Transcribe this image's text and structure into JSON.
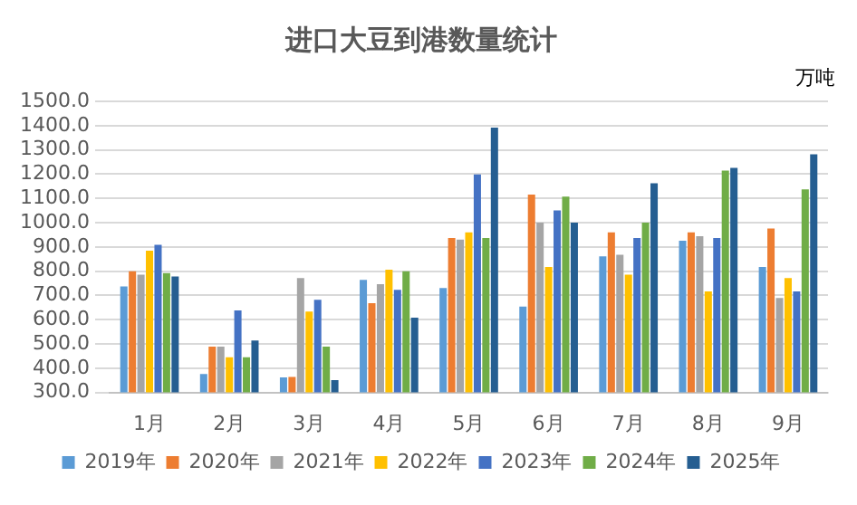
{
  "chart_data": {
    "type": "bar",
    "title": "进口大豆到港数量统计",
    "annotations": [
      "万吨"
    ],
    "categories": [
      "1月",
      "2月",
      "3月",
      "4月",
      "5月",
      "6月",
      "7月",
      "8月",
      "9月"
    ],
    "series": [
      {
        "name": "2019年",
        "color": "#5b9bd5",
        "values": [
          737,
          376,
          362,
          764,
          730,
          654,
          861,
          925,
          817
        ]
      },
      {
        "name": "2020年",
        "color": "#ed7d31",
        "values": [
          799,
          489,
          364,
          668,
          937,
          1116,
          960,
          960,
          976
        ]
      },
      {
        "name": "2021年",
        "color": "#a5a5a5",
        "values": [
          785,
          489,
          771,
          746,
          930,
          1000,
          868,
          944,
          689
        ]
      },
      {
        "name": "2022年",
        "color": "#ffc000",
        "values": [
          884,
          445,
          633,
          806,
          960,
          817,
          785,
          716,
          771
        ]
      },
      {
        "name": "2023年",
        "color": "#4472c4",
        "values": [
          909,
          638,
          682,
          723,
          1199,
          1050,
          937,
          937,
          716
        ]
      },
      {
        "name": "2024年",
        "color": "#70ad47",
        "values": [
          792,
          445,
          489,
          799,
          937,
          1107,
          1000,
          1215,
          1137
        ]
      },
      {
        "name": "2025年",
        "color": "#255e91",
        "values": [
          778,
          514,
          351,
          608,
          1392,
          1000,
          1162,
          1226,
          1282
        ]
      }
    ],
    "ylim": [
      300,
      1500
    ],
    "yticks": [
      {
        "value": 300,
        "label": "300.0"
      },
      {
        "value": 400,
        "label": "400.0"
      },
      {
        "value": 500,
        "label": "500.0"
      },
      {
        "value": 600,
        "label": "600.0"
      },
      {
        "value": 700,
        "label": "700.0"
      },
      {
        "value": 800,
        "label": "800.0"
      },
      {
        "value": 900,
        "label": "900.0"
      },
      {
        "value": 1000,
        "label": "1000.0"
      },
      {
        "value": 1100,
        "label": "1100.0"
      },
      {
        "value": 1200,
        "label": "1200.0"
      },
      {
        "value": 1300,
        "label": "1300.0"
      },
      {
        "value": 1400,
        "label": "1400.0"
      },
      {
        "value": 1500,
        "label": "1500.0"
      }
    ],
    "grid": "y",
    "legend": "bottom"
  }
}
